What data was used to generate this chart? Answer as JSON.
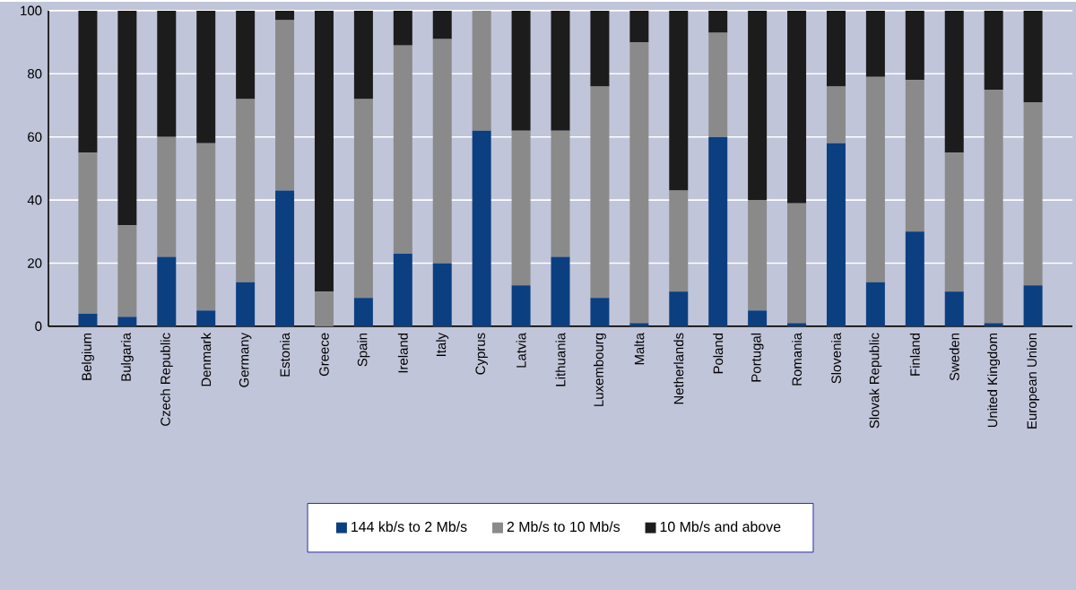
{
  "chart_data": {
    "type": "bar",
    "stacked": true,
    "categories": [
      "Belgium",
      "Bulgaria",
      "Czech Republic",
      "Denmark",
      "Germany",
      "Estonia",
      "Greece",
      "Spain",
      "Ireland",
      "Italy",
      "Cyprus",
      "Latvia",
      "Lithuania",
      "Luxembourg",
      "Malta",
      "Netherlands",
      "Poland",
      "Portugal",
      "Romania",
      "Slovenia",
      "Slovak Republic",
      "Finland",
      "Sweden",
      "United Kingdom",
      "European Union"
    ],
    "series": [
      {
        "name": "144 kb/s to 2 Mb/s",
        "color": "#0c3f80",
        "values": [
          4,
          3,
          22,
          5,
          14,
          43,
          0,
          9,
          23,
          20,
          62,
          13,
          22,
          9,
          1,
          11,
          60,
          5,
          1,
          58,
          14,
          30,
          11,
          1,
          13
        ]
      },
      {
        "name": "2 Mb/s to 10 Mb/s",
        "color": "#8a8a8a",
        "values": [
          51,
          29,
          38,
          53,
          58,
          54,
          11,
          63,
          66,
          71,
          38,
          49,
          40,
          67,
          89,
          32,
          33,
          35,
          38,
          18,
          65,
          48,
          44,
          74,
          58
        ]
      },
      {
        "name": "10 Mb/s and above",
        "color": "#1c1c1c",
        "values": [
          45,
          68,
          40,
          42,
          28,
          3,
          89,
          28,
          11,
          9,
          0,
          38,
          38,
          24,
          10,
          57,
          7,
          60,
          61,
          24,
          21,
          22,
          45,
          25,
          29
        ]
      }
    ],
    "ylim": [
      0,
      100
    ],
    "yticks": [
      0,
      20,
      40,
      60,
      80,
      100
    ],
    "grid": "y",
    "legend": "bottom"
  }
}
